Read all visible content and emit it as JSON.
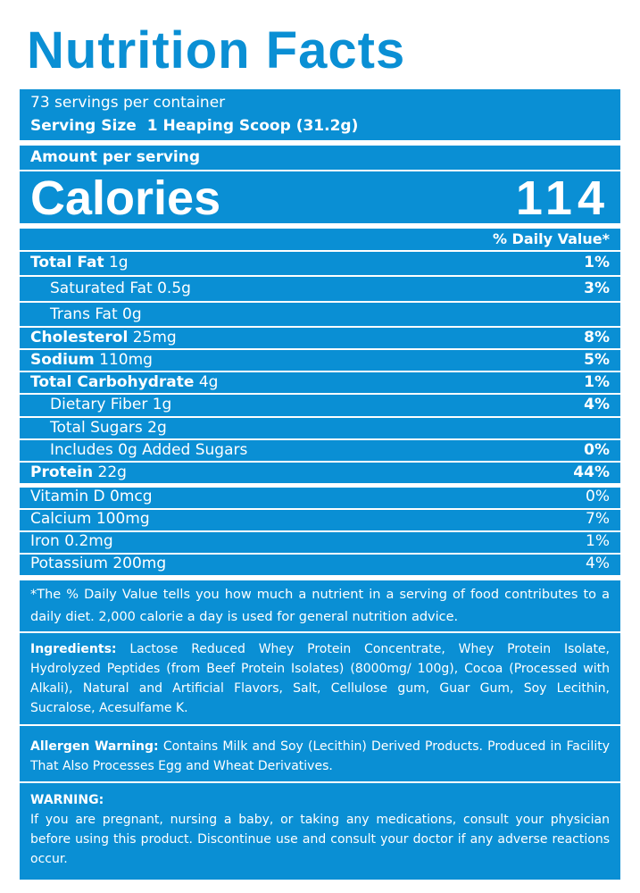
{
  "header": {
    "title": "Nutrition Facts"
  },
  "servings": {
    "per_container": "73 servings per container",
    "serving_size_label": "Serving Size",
    "serving_size_value": "1 Heaping Scoop (31.2g)"
  },
  "amount_per_serving": "Amount per serving",
  "calories": {
    "label": "Calories",
    "value": "114"
  },
  "daily_value_header": "% Daily Value*",
  "nutrients": [
    {
      "name": "Total Fat",
      "amount": "1g",
      "dv": "1%"
    },
    {
      "name": "Saturated Fat",
      "amount": "0.5g",
      "dv": "3%"
    },
    {
      "name": "Trans Fat",
      "amount": "0g"
    },
    {
      "name": "Cholesterol",
      "amount": "25mg",
      "dv": "8%"
    },
    {
      "name": "Sodium",
      "amount": "110mg",
      "dv": "5%"
    },
    {
      "name": "Total Carbohydrate",
      "amount": "4g",
      "dv": "1%"
    },
    {
      "name": "Dietary Fiber",
      "amount": "1g",
      "dv": "4%"
    },
    {
      "name": "Total Sugars",
      "amount": "2g"
    },
    {
      "name": "Includes 0g Added Sugars",
      "dv": "0%"
    },
    {
      "name": "Protein",
      "amount": "22g",
      "dv": "44%"
    }
  ],
  "vitamins": [
    {
      "name": "Vitamin D",
      "amount": "0mcg",
      "dv": "0%"
    },
    {
      "name": "Calcium",
      "amount": "100mg",
      "dv": "7%"
    },
    {
      "name": "Iron",
      "amount": "0.2mg",
      "dv": "1%"
    },
    {
      "name": "Potassium",
      "amount": "200mg",
      "dv": "4%"
    }
  ],
  "footnote": "*The % Daily Value tells you how much a nutrient in a serving of food contributes to a daily diet. 2,000 calorie a day is used for general nutrition advice.",
  "ingredients": {
    "label": "Ingredients:",
    "text": "Lactose Reduced Whey Protein Concentrate, Whey Protein Isolate, Hydrolyzed Peptides (from Beef Protein Isolates) (8000mg/ 100g), Cocoa (Processed with Alkali), Natural and Artificial Flavors, Salt, Cellulose gum, Guar Gum, Soy Lecithin, Sucralose, Acesulfame K."
  },
  "allergen": {
    "label": "Allergen Warning:",
    "text": "Contains Milk and Soy (Lecithin) Derived Products. Produced in Facility That Also Processes Egg and Wheat Derivatives."
  },
  "warning": {
    "label": "WARNING:",
    "text": "If you are pregnant, nursing a baby, or taking any medications, consult your physician before using this product. Discontinue use and consult your doctor if any adverse reactions occur."
  }
}
